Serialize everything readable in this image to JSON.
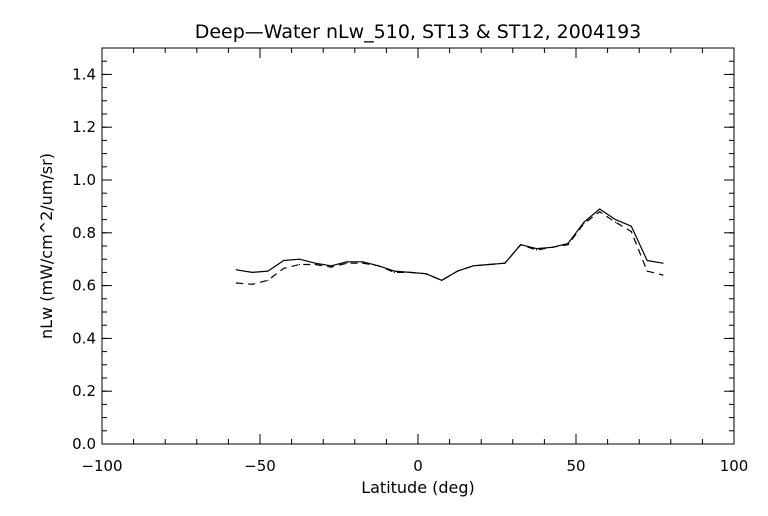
{
  "chart_data": {
    "type": "line",
    "title": "Deep—Water nLw_510, ST13 & ST12, 2004193",
    "xlabel": "Latitude (deg)",
    "ylabel": "nLw (mW/cm^2/um/sr)",
    "xlim": [
      -100,
      100
    ],
    "ylim": [
      0.0,
      1.5
    ],
    "x_ticks": [
      -100,
      -50,
      0,
      50,
      100
    ],
    "x_tick_labels": [
      "−100",
      "−50",
      "0",
      "50",
      "100"
    ],
    "y_ticks": [
      0.0,
      0.2,
      0.4,
      0.6,
      0.8,
      1.0,
      1.2,
      1.4
    ],
    "y_tick_labels": [
      "0.0",
      "0.2",
      "0.4",
      "0.6",
      "0.8",
      "1.0",
      "1.2",
      "1.4"
    ],
    "x_minor_step": 10,
    "y_minor_step": 0.05,
    "grid": false,
    "line_color": "#000000",
    "series": [
      {
        "style": "solid",
        "x": [
          -57.5,
          -52.5,
          -47.5,
          -42.5,
          -37.5,
          -32.5,
          -27.5,
          -22.5,
          -17.5,
          -12.5,
          -7.5,
          -2.5,
          2.5,
          7.5,
          12.5,
          17.5,
          22.5,
          27.5,
          32.5,
          37.5,
          42.5,
          47.5,
          52.5,
          57.5,
          62.5,
          67.5,
          72.5,
          77.5
        ],
        "values": [
          0.66,
          0.65,
          0.655,
          0.695,
          0.7,
          0.685,
          0.675,
          0.69,
          0.69,
          0.675,
          0.655,
          0.65,
          0.645,
          0.62,
          0.655,
          0.675,
          0.68,
          0.685,
          0.755,
          0.74,
          0.745,
          0.76,
          0.84,
          0.89,
          0.85,
          0.825,
          0.695,
          0.685
        ]
      },
      {
        "style": "dashed",
        "x": [
          -57.5,
          -52.5,
          -47.5,
          -42.5,
          -37.5,
          -32.5,
          -27.5,
          -22.5,
          -17.5,
          -12.5,
          -7.5,
          -2.5,
          2.5,
          7.5,
          12.5,
          17.5,
          22.5,
          27.5,
          32.5,
          37.5,
          42.5,
          47.5,
          52.5,
          57.5,
          62.5,
          67.5,
          72.5,
          77.5
        ],
        "values": [
          0.61,
          0.605,
          0.62,
          0.665,
          0.68,
          0.68,
          0.67,
          0.685,
          0.685,
          0.675,
          0.65,
          0.65,
          0.645,
          0.62,
          0.655,
          0.675,
          0.68,
          0.685,
          0.755,
          0.735,
          0.745,
          0.755,
          0.835,
          0.88,
          0.84,
          0.805,
          0.655,
          0.64
        ]
      }
    ]
  }
}
